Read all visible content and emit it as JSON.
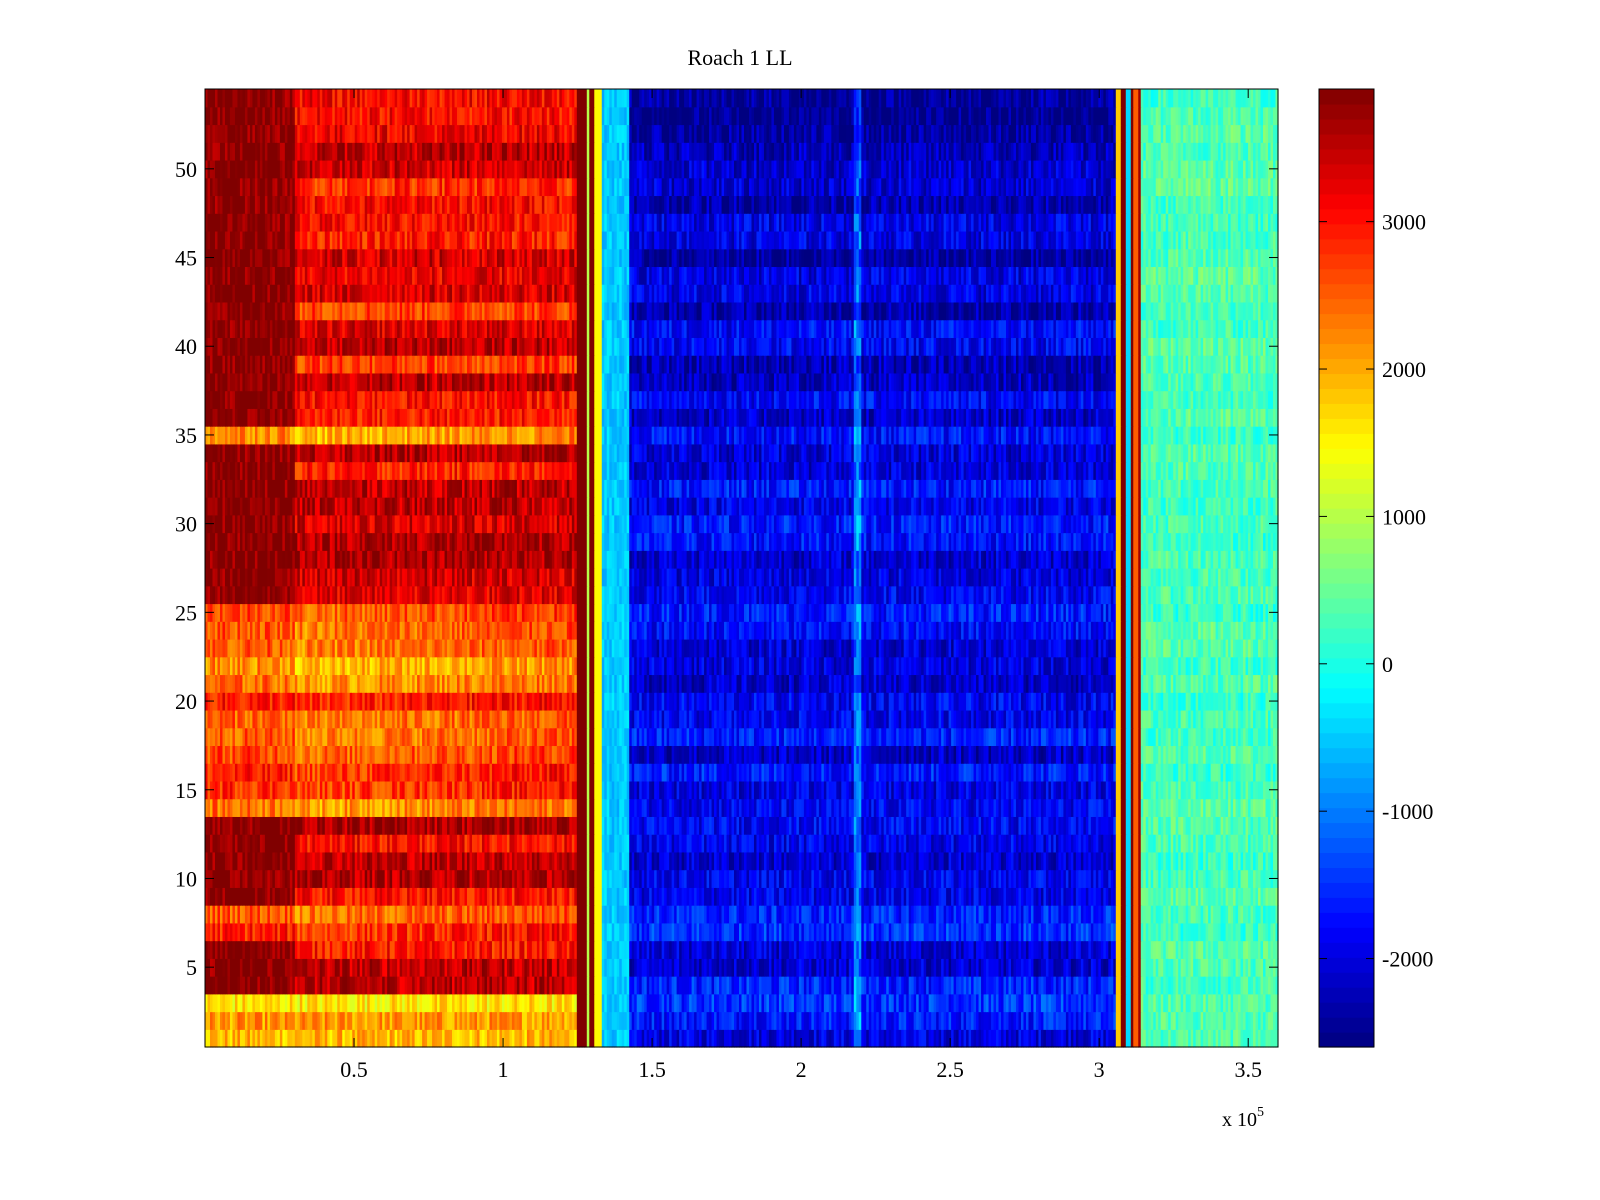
{
  "chart_data": {
    "type": "heatmap",
    "title": "Roach 1 LL",
    "xlabel": "",
    "ylabel": "",
    "x_exponent_label": "x 10",
    "x_exponent_power": "5",
    "xlim": [
      0,
      3.6
    ],
    "ylim": [
      0.5,
      54.5
    ],
    "xticks": [
      0.5,
      1,
      1.5,
      2,
      2.5,
      3,
      3.5
    ],
    "xtick_labels": [
      "0.5",
      "1",
      "1.5",
      "2",
      "2.5",
      "3",
      "3.5"
    ],
    "yticks": [
      5,
      10,
      15,
      20,
      25,
      30,
      35,
      40,
      45,
      50
    ],
    "ytick_labels": [
      "5",
      "10",
      "15",
      "20",
      "25",
      "30",
      "35",
      "40",
      "45",
      "50"
    ],
    "rows": 54,
    "colormap": "jet",
    "clim": [
      -2600,
      3900
    ],
    "colorbar": {
      "ticks": [
        -2000,
        -1000,
        0,
        1000,
        2000,
        3000
      ],
      "tick_labels": [
        "-2000",
        "-1000",
        "0",
        "1000",
        "2000",
        "3000"
      ],
      "placement": "right"
    },
    "approx_regions": [
      {
        "x_range": [
          0,
          1.25
        ],
        "approx_value": 3200,
        "description_label": "high"
      },
      {
        "x_range": [
          1.33,
          1.42
        ],
        "approx_value": -500
      },
      {
        "x_range": [
          1.42,
          3.06
        ],
        "approx_value": -1800
      },
      {
        "x_range": [
          3.14,
          3.6
        ],
        "approx_value": 300
      }
    ]
  }
}
